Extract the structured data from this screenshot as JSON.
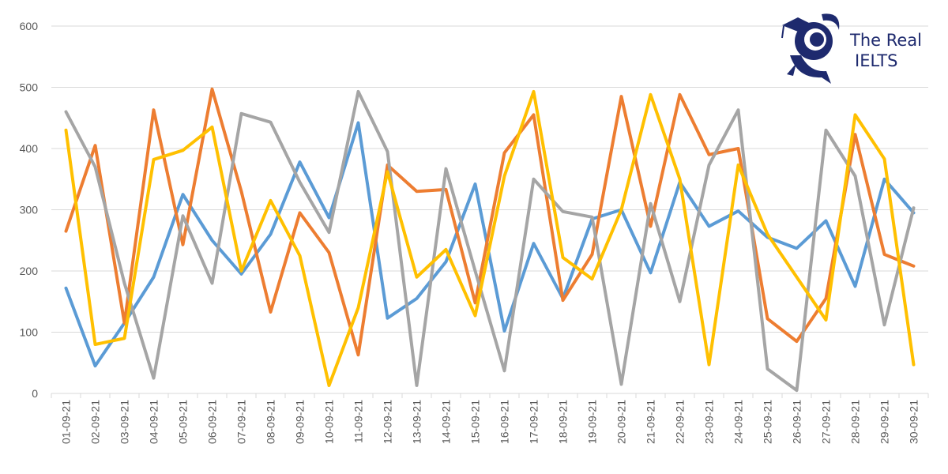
{
  "logo": {
    "line1": "The Real",
    "line2": "IELTS",
    "color": "#1e2a6e"
  },
  "chart_data": {
    "type": "line",
    "title": "",
    "xlabel": "",
    "ylabel": "",
    "ylim": [
      0,
      600
    ],
    "yticks": [
      0,
      100,
      200,
      300,
      400,
      500,
      600
    ],
    "grid": true,
    "categories": [
      "01-09-21",
      "02-09-21",
      "03-09-21",
      "04-09-21",
      "05-09-21",
      "06-09-21",
      "07-09-21",
      "08-09-21",
      "09-09-21",
      "10-09-21",
      "11-09-21",
      "12-09-21",
      "13-09-21",
      "14-09-21",
      "15-09-21",
      "16-09-21",
      "17-09-21",
      "18-09-21",
      "19-09-21",
      "20-09-21",
      "21-09-21",
      "22-09-21",
      "23-09-21",
      "24-09-21",
      "25-09-21",
      "26-09-21",
      "27-09-21",
      "28-09-21",
      "29-09-21",
      "30-09-21"
    ],
    "series": [
      {
        "color": "#5b9bd5",
        "values": [
          172,
          45,
          115,
          190,
          325,
          250,
          195,
          260,
          378,
          287,
          442,
          123,
          155,
          215,
          342,
          102,
          245,
          155,
          285,
          300,
          197,
          345,
          273,
          298,
          255,
          237,
          282,
          175,
          350,
          295
        ]
      },
      {
        "color": "#ed7d31",
        "values": [
          265,
          405,
          115,
          463,
          243,
          497,
          330,
          133,
          295,
          230,
          63,
          373,
          330,
          333,
          148,
          393,
          455,
          152,
          227,
          485,
          273,
          488,
          390,
          400,
          122,
          85,
          155,
          423,
          227,
          208
        ]
      },
      {
        "color": "#a5a5a5",
        "values": [
          460,
          370,
          180,
          25,
          290,
          180,
          457,
          443,
          345,
          263,
          493,
          395,
          13,
          367,
          200,
          37,
          350,
          297,
          288,
          15,
          310,
          150,
          373,
          463,
          40,
          5,
          430,
          355,
          112,
          303
        ]
      },
      {
        "color": "#ffc000",
        "values": [
          430,
          80,
          90,
          382,
          397,
          435,
          200,
          315,
          225,
          13,
          140,
          362,
          190,
          235,
          127,
          355,
          493,
          222,
          187,
          300,
          488,
          350,
          47,
          373,
          260,
          190,
          120,
          455,
          383,
          47
        ]
      }
    ]
  }
}
